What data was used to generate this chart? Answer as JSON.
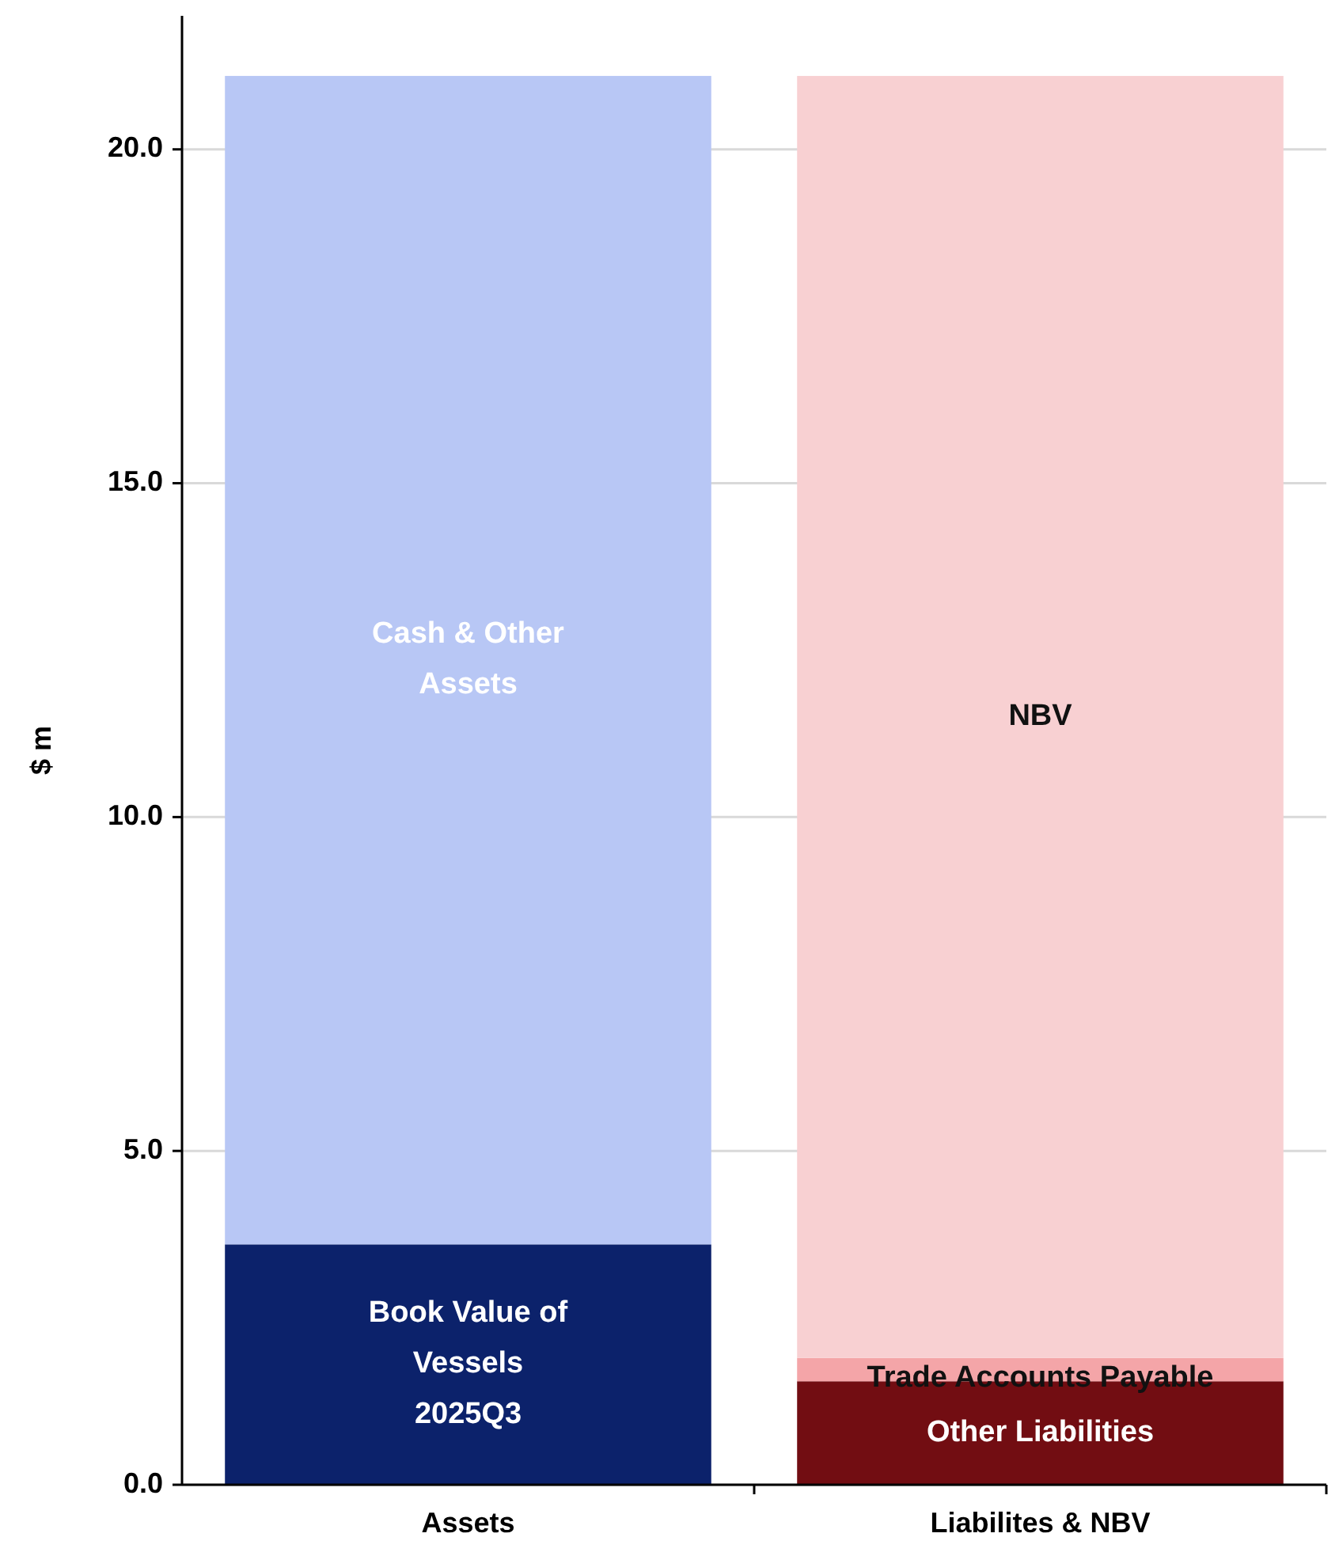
{
  "chart_data": {
    "type": "bar",
    "stacked": true,
    "ylabel": "$ m",
    "categories": [
      "Assets",
      "Liabilites & NBV"
    ],
    "series": [
      {
        "name": "Book Value of Vessels 2025Q3",
        "color": "#0c226b",
        "values": [
          3.6,
          null
        ]
      },
      {
        "name": "Cash & Other Assets",
        "color": "#b8c7f5",
        "values": [
          17.5,
          null
        ]
      },
      {
        "name": "Other Liabilities",
        "color": "#720d12",
        "values": [
          null,
          1.55
        ]
      },
      {
        "name": "Trade Accounts Payable",
        "color": "#f4a5a8",
        "values": [
          null,
          0.35
        ]
      },
      {
        "name": "NBV",
        "color": "#f8d0d2",
        "values": [
          null,
          19.2
        ]
      }
    ],
    "ylim": [
      0,
      22
    ],
    "yticks": [
      {
        "value": 0,
        "label": "0.0"
      },
      {
        "value": 5,
        "label": "5.0"
      },
      {
        "value": 10,
        "label": "10.0"
      },
      {
        "value": 15,
        "label": "15.0"
      },
      {
        "value": 20,
        "label": "20.0"
      }
    ],
    "grid": "y"
  }
}
